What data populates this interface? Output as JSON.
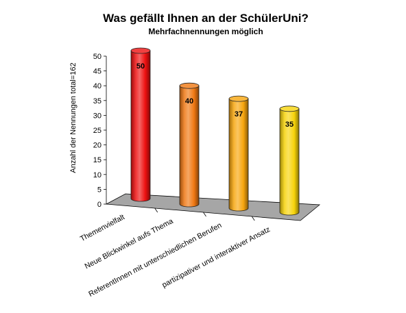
{
  "chart_data": {
    "type": "bar",
    "title": "Was gefällt Ihnen an der SchülerUni?",
    "subtitle": "Mehrfachnennungen möglich",
    "ylabel": "Anzahl der Nennungen total=162",
    "xlabel": "",
    "ylim": [
      0,
      50
    ],
    "yticks": [
      0,
      5,
      10,
      15,
      20,
      25,
      30,
      35,
      40,
      45,
      50
    ],
    "categories": [
      "Themenvielfalt",
      "Neue Blickwinkel aufs Thema",
      "ReferentInnen mit unterschiedlichen Berufen",
      "partizipativer und interaktiver Ansatz"
    ],
    "values": [
      50,
      40,
      37,
      35
    ],
    "value_labels": [
      "50",
      "40",
      "37",
      "35"
    ],
    "colors": [
      "#ee1010",
      "#f07812",
      "#f7a50d",
      "#f7d40a"
    ],
    "style": "3d-cylinder",
    "grid": false,
    "legend": "none"
  }
}
